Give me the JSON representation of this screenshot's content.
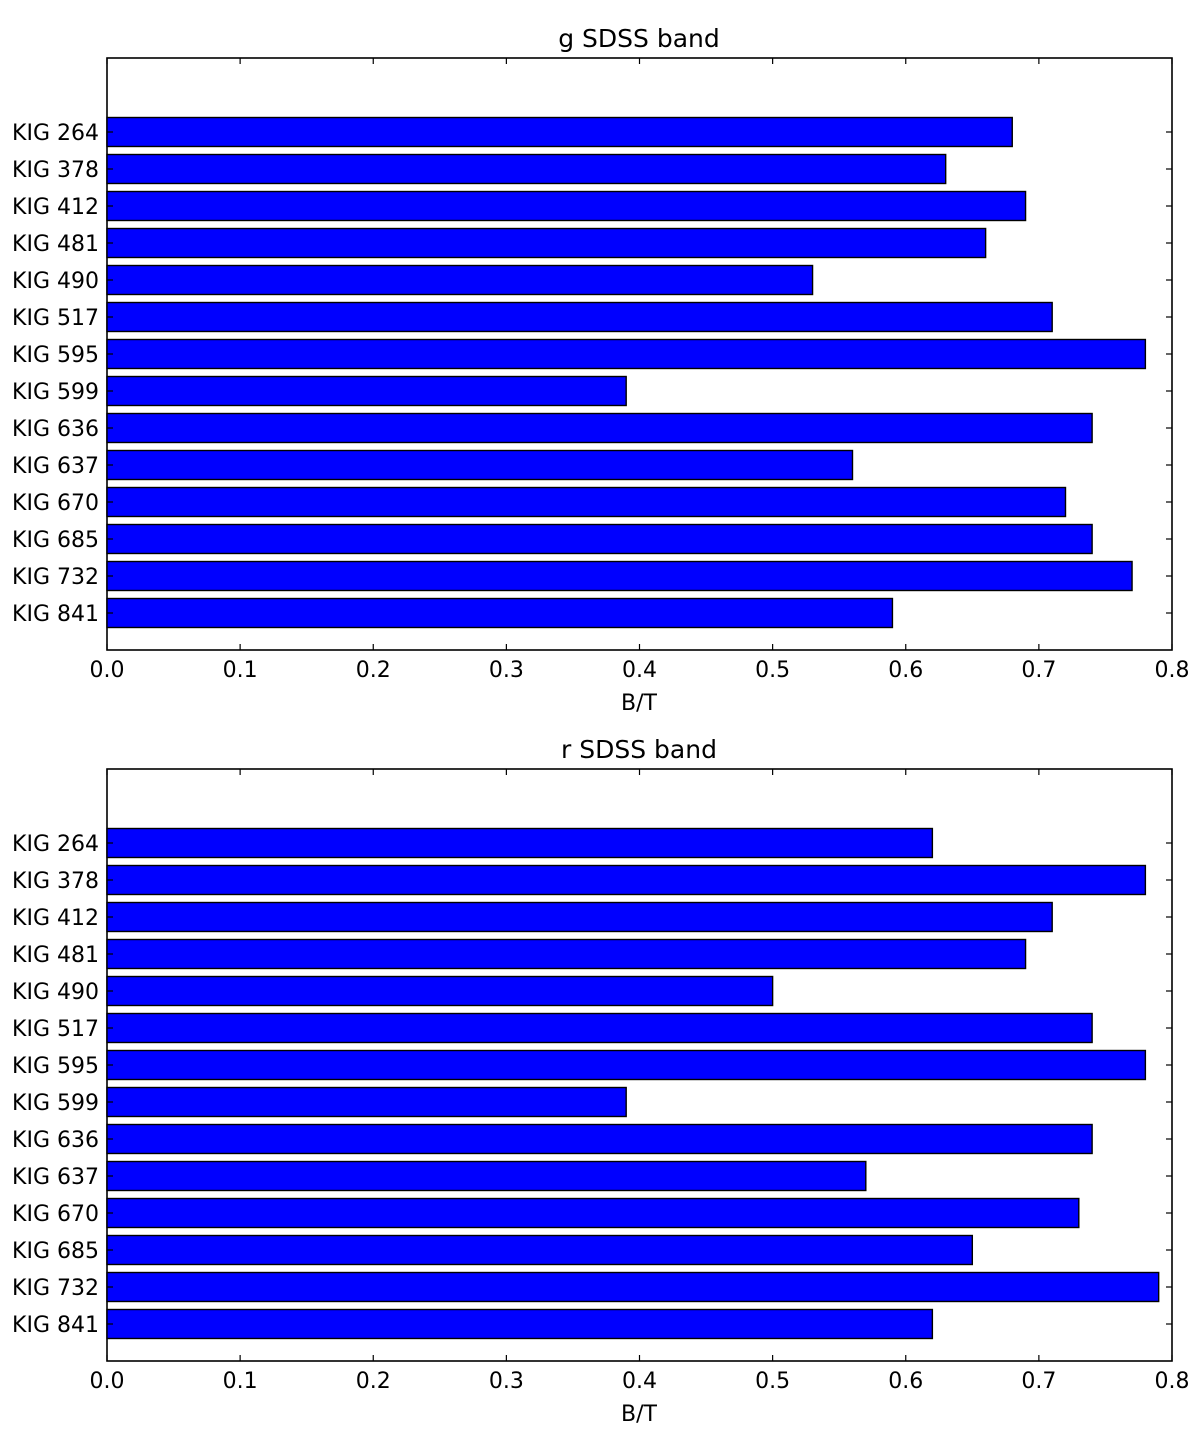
{
  "chart_data": [
    {
      "type": "bar",
      "orientation": "horizontal",
      "title": "g SDSS band",
      "xlabel": "B/T",
      "ylabel": "",
      "xlim": [
        0.0,
        0.8
      ],
      "xticks": [
        "0.0",
        "0.1",
        "0.2",
        "0.3",
        "0.4",
        "0.5",
        "0.6",
        "0.7",
        "0.8"
      ],
      "categories": [
        "KIG 264",
        "KIG 378",
        "KIG 412",
        "KIG 481",
        "KIG 490",
        "KIG 517",
        "KIG 595",
        "KIG 599",
        "KIG 636",
        "KIG 637",
        "KIG 670",
        "KIG 685",
        "KIG 732",
        "KIG 841"
      ],
      "values": [
        0.68,
        0.63,
        0.69,
        0.66,
        0.53,
        0.71,
        0.78,
        0.39,
        0.74,
        0.56,
        0.72,
        0.74,
        0.77,
        0.59
      ],
      "bar_color": "#0000ff",
      "grid": false
    },
    {
      "type": "bar",
      "orientation": "horizontal",
      "title": "r SDSS band",
      "xlabel": "B/T",
      "ylabel": "",
      "xlim": [
        0.0,
        0.8
      ],
      "xticks": [
        "0.0",
        "0.1",
        "0.2",
        "0.3",
        "0.4",
        "0.5",
        "0.6",
        "0.7",
        "0.8"
      ],
      "categories": [
        "KIG 264",
        "KIG 378",
        "KIG 412",
        "KIG 481",
        "KIG 490",
        "KIG 517",
        "KIG 595",
        "KIG 599",
        "KIG 636",
        "KIG 637",
        "KIG 670",
        "KIG 685",
        "KIG 732",
        "KIG 841"
      ],
      "values": [
        0.62,
        0.78,
        0.71,
        0.69,
        0.5,
        0.74,
        0.78,
        0.39,
        0.74,
        0.57,
        0.73,
        0.65,
        0.79,
        0.62
      ],
      "bar_color": "#0000ff",
      "grid": false
    }
  ]
}
